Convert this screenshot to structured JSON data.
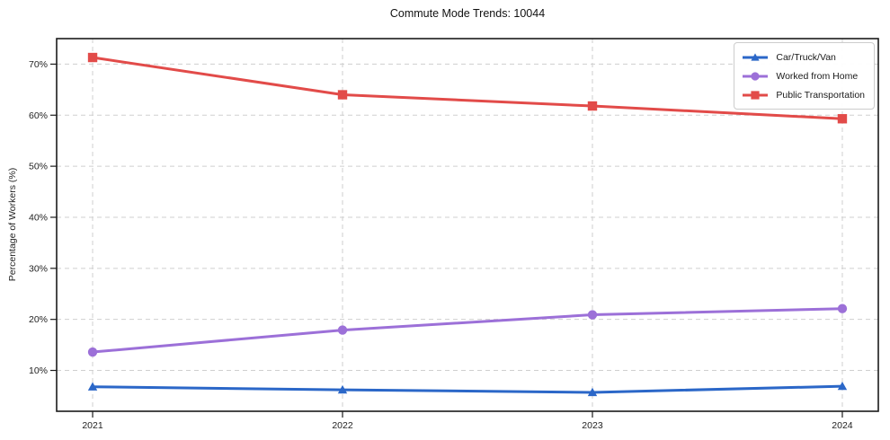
{
  "figure": {
    "background": "#ffffff"
  },
  "chart_data": {
    "type": "line",
    "title": "Commute Mode Trends: 10044",
    "xlabel": "",
    "ylabel": "Percentage of Workers (%)",
    "categories": [
      "2021",
      "2022",
      "2023",
      "2024"
    ],
    "series": [
      {
        "name": "Car/Truck/Van",
        "color": "#2b67c8",
        "marker": "triangle",
        "values": [
          6.8,
          6.2,
          5.7,
          6.9
        ]
      },
      {
        "name": "Worked from Home",
        "color": "#9c70d8",
        "marker": "circle",
        "values": [
          13.6,
          17.9,
          20.9,
          22.1
        ]
      },
      {
        "name": "Public Transportation",
        "color": "#e24b49",
        "marker": "square",
        "values": [
          71.3,
          64.0,
          61.8,
          59.3
        ]
      }
    ],
    "ylim": [
      2,
      75
    ],
    "yticks": [
      10,
      20,
      30,
      40,
      50,
      60,
      70
    ],
    "ytick_suffix": "%",
    "grid": true,
    "grid_style": "dashed",
    "legend_position": "upper right",
    "colors": {
      "grid": "#cfcfcf",
      "axis_border": "#1b1b1b",
      "tick_text": "#1f1f1f"
    }
  }
}
